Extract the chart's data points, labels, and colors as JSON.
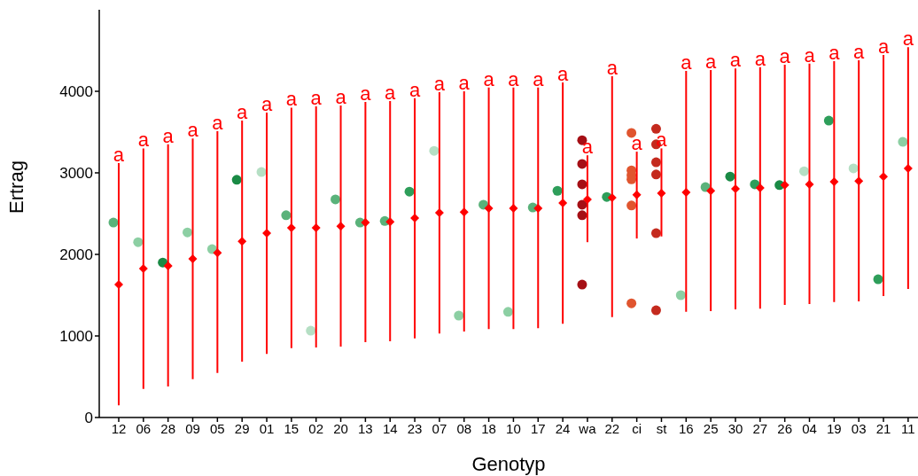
{
  "chart_data": {
    "type": "scatter",
    "xlabel": "Genotyp",
    "ylabel": "Ertrag",
    "categories": [
      "12",
      "06",
      "28",
      "09",
      "05",
      "29",
      "01",
      "15",
      "02",
      "20",
      "13",
      "14",
      "23",
      "07",
      "08",
      "18",
      "10",
      "17",
      "24",
      "wa",
      "22",
      "ci",
      "st",
      "16",
      "25",
      "30",
      "27",
      "26",
      "04",
      "19",
      "03",
      "21",
      "11"
    ],
    "ylim": [
      0,
      5000
    ],
    "yticks": [
      0,
      1000,
      2000,
      3000,
      4000
    ],
    "series": [
      {
        "marker": "circle",
        "x": [
          "12",
          "06",
          "28",
          "09",
          "05",
          "29",
          "01",
          "15",
          "02",
          "20",
          "13",
          "14",
          "23",
          "07",
          "08",
          "18",
          "10",
          "17",
          "24",
          "wa",
          "wa",
          "wa",
          "wa",
          "wa",
          "wa",
          "22",
          "ci",
          "ci",
          "ci",
          "ci",
          "ci",
          "ci",
          "st",
          "st",
          "st",
          "st",
          "st",
          "st",
          "16",
          "25",
          "30",
          "27",
          "26",
          "04",
          "19",
          "03",
          "21",
          "11"
        ],
        "values": [
          2390,
          2150,
          1900,
          2270,
          2065,
          2915,
          3010,
          2480,
          1065,
          2675,
          2390,
          2410,
          2770,
          3270,
          1250,
          2610,
          1295,
          2575,
          2780,
          3400,
          3110,
          2860,
          2610,
          2480,
          1630,
          2705,
          3490,
          3030,
          2970,
          2920,
          2600,
          1400,
          3540,
          3350,
          3130,
          2980,
          2260,
          1315,
          1500,
          2825,
          2955,
          2860,
          2850,
          3020,
          3640,
          3055,
          1695,
          3380
        ],
        "colors": [
          "#5ab27a",
          "#8ccfa3",
          "#1a8a45",
          "#8ccfa3",
          "#8ccfa3",
          "#1a8a45",
          "#b5dfc4",
          "#5ab27a",
          "#b5dfc4",
          "#5ab27a",
          "#5ab27a",
          "#5ab27a",
          "#2e9e5a",
          "#b5dfc4",
          "#8ccfa3",
          "#5ab27a",
          "#8ccfa3",
          "#5ab27a",
          "#2e9e5a",
          "#a50f15",
          "#a50f15",
          "#a50f15",
          "#a50f15",
          "#a50f15",
          "#a50f15",
          "#2e9e5a",
          "#e0552f",
          "#e0552f",
          "#e0552f",
          "#e0552f",
          "#e0552f",
          "#e0552f",
          "#c42a1e",
          "#c42a1e",
          "#c42a1e",
          "#c42a1e",
          "#c42a1e",
          "#c42a1e",
          "#8ccfa3",
          "#5ab27a",
          "#1a8a45",
          "#2e9e5a",
          "#1a8a45",
          "#b5dfc4",
          "#2e9e5a",
          "#b5dfc4",
          "#2e9e5a",
          "#8ccfa3"
        ]
      },
      {
        "marker": "diamond",
        "color": "#ff0000",
        "values": [
          1630,
          1826,
          1860,
          1945,
          2020,
          2160,
          2260,
          2325,
          2325,
          2345,
          2390,
          2400,
          2445,
          2510,
          2520,
          2565,
          2565,
          2565,
          2630,
          2675,
          2695,
          2730,
          2750,
          2760,
          2780,
          2805,
          2815,
          2850,
          2860,
          2890,
          2900,
          2955,
          3055
        ],
        "errors": [
          [
            150,
            3120
          ],
          [
            350,
            3300
          ],
          [
            380,
            3350
          ],
          [
            470,
            3420
          ],
          [
            545,
            3510
          ],
          [
            685,
            3640
          ],
          [
            780,
            3740
          ],
          [
            850,
            3800
          ],
          [
            860,
            3815
          ],
          [
            870,
            3825
          ],
          [
            925,
            3870
          ],
          [
            935,
            3880
          ],
          [
            970,
            3915
          ],
          [
            1030,
            3990
          ],
          [
            1055,
            4000
          ],
          [
            1085,
            4045
          ],
          [
            1085,
            4045
          ],
          [
            1095,
            4045
          ],
          [
            1150,
            4110
          ],
          [
            2150,
            3215
          ],
          [
            1230,
            4185
          ],
          [
            2195,
            3260
          ],
          [
            2220,
            3300
          ],
          [
            1295,
            4250
          ],
          [
            1305,
            4260
          ],
          [
            1325,
            4280
          ],
          [
            1335,
            4295
          ],
          [
            1380,
            4325
          ],
          [
            1390,
            4340
          ],
          [
            1415,
            4370
          ],
          [
            1425,
            4380
          ],
          [
            1490,
            4445
          ],
          [
            1575,
            4540
          ]
        ]
      }
    ],
    "annotations": [
      {
        "text": "a",
        "x": "12",
        "y": 3120
      },
      {
        "text": "a",
        "x": "06",
        "y": 3300
      },
      {
        "text": "a",
        "x": "28",
        "y": 3350
      },
      {
        "text": "a",
        "x": "09",
        "y": 3420
      },
      {
        "text": "a",
        "x": "05",
        "y": 3510
      },
      {
        "text": "a",
        "x": "29",
        "y": 3640
      },
      {
        "text": "a",
        "x": "01",
        "y": 3740
      },
      {
        "text": "a",
        "x": "15",
        "y": 3800
      },
      {
        "text": "a",
        "x": "02",
        "y": 3815
      },
      {
        "text": "a",
        "x": "20",
        "y": 3825
      },
      {
        "text": "a",
        "x": "13",
        "y": 3870
      },
      {
        "text": "a",
        "x": "14",
        "y": 3880
      },
      {
        "text": "a",
        "x": "23",
        "y": 3915
      },
      {
        "text": "a",
        "x": "07",
        "y": 3990
      },
      {
        "text": "a",
        "x": "08",
        "y": 4000
      },
      {
        "text": "a",
        "x": "18",
        "y": 4045
      },
      {
        "text": "a",
        "x": "10",
        "y": 4045
      },
      {
        "text": "a",
        "x": "17",
        "y": 4045
      },
      {
        "text": "a",
        "x": "24",
        "y": 4110
      },
      {
        "text": "a",
        "x": "wa",
        "y": 3215
      },
      {
        "text": "a",
        "x": "22",
        "y": 4185
      },
      {
        "text": "a",
        "x": "ci",
        "y": 3260
      },
      {
        "text": "a",
        "x": "st",
        "y": 3300
      },
      {
        "text": "a",
        "x": "16",
        "y": 4250
      },
      {
        "text": "a",
        "x": "25",
        "y": 4260
      },
      {
        "text": "a",
        "x": "30",
        "y": 4280
      },
      {
        "text": "a",
        "x": "27",
        "y": 4295
      },
      {
        "text": "a",
        "x": "26",
        "y": 4325
      },
      {
        "text": "a",
        "x": "04",
        "y": 4340
      },
      {
        "text": "a",
        "x": "19",
        "y": 4370
      },
      {
        "text": "a",
        "x": "03",
        "y": 4380
      },
      {
        "text": "a",
        "x": "21",
        "y": 4445
      },
      {
        "text": "a",
        "x": "11",
        "y": 4540
      }
    ]
  }
}
